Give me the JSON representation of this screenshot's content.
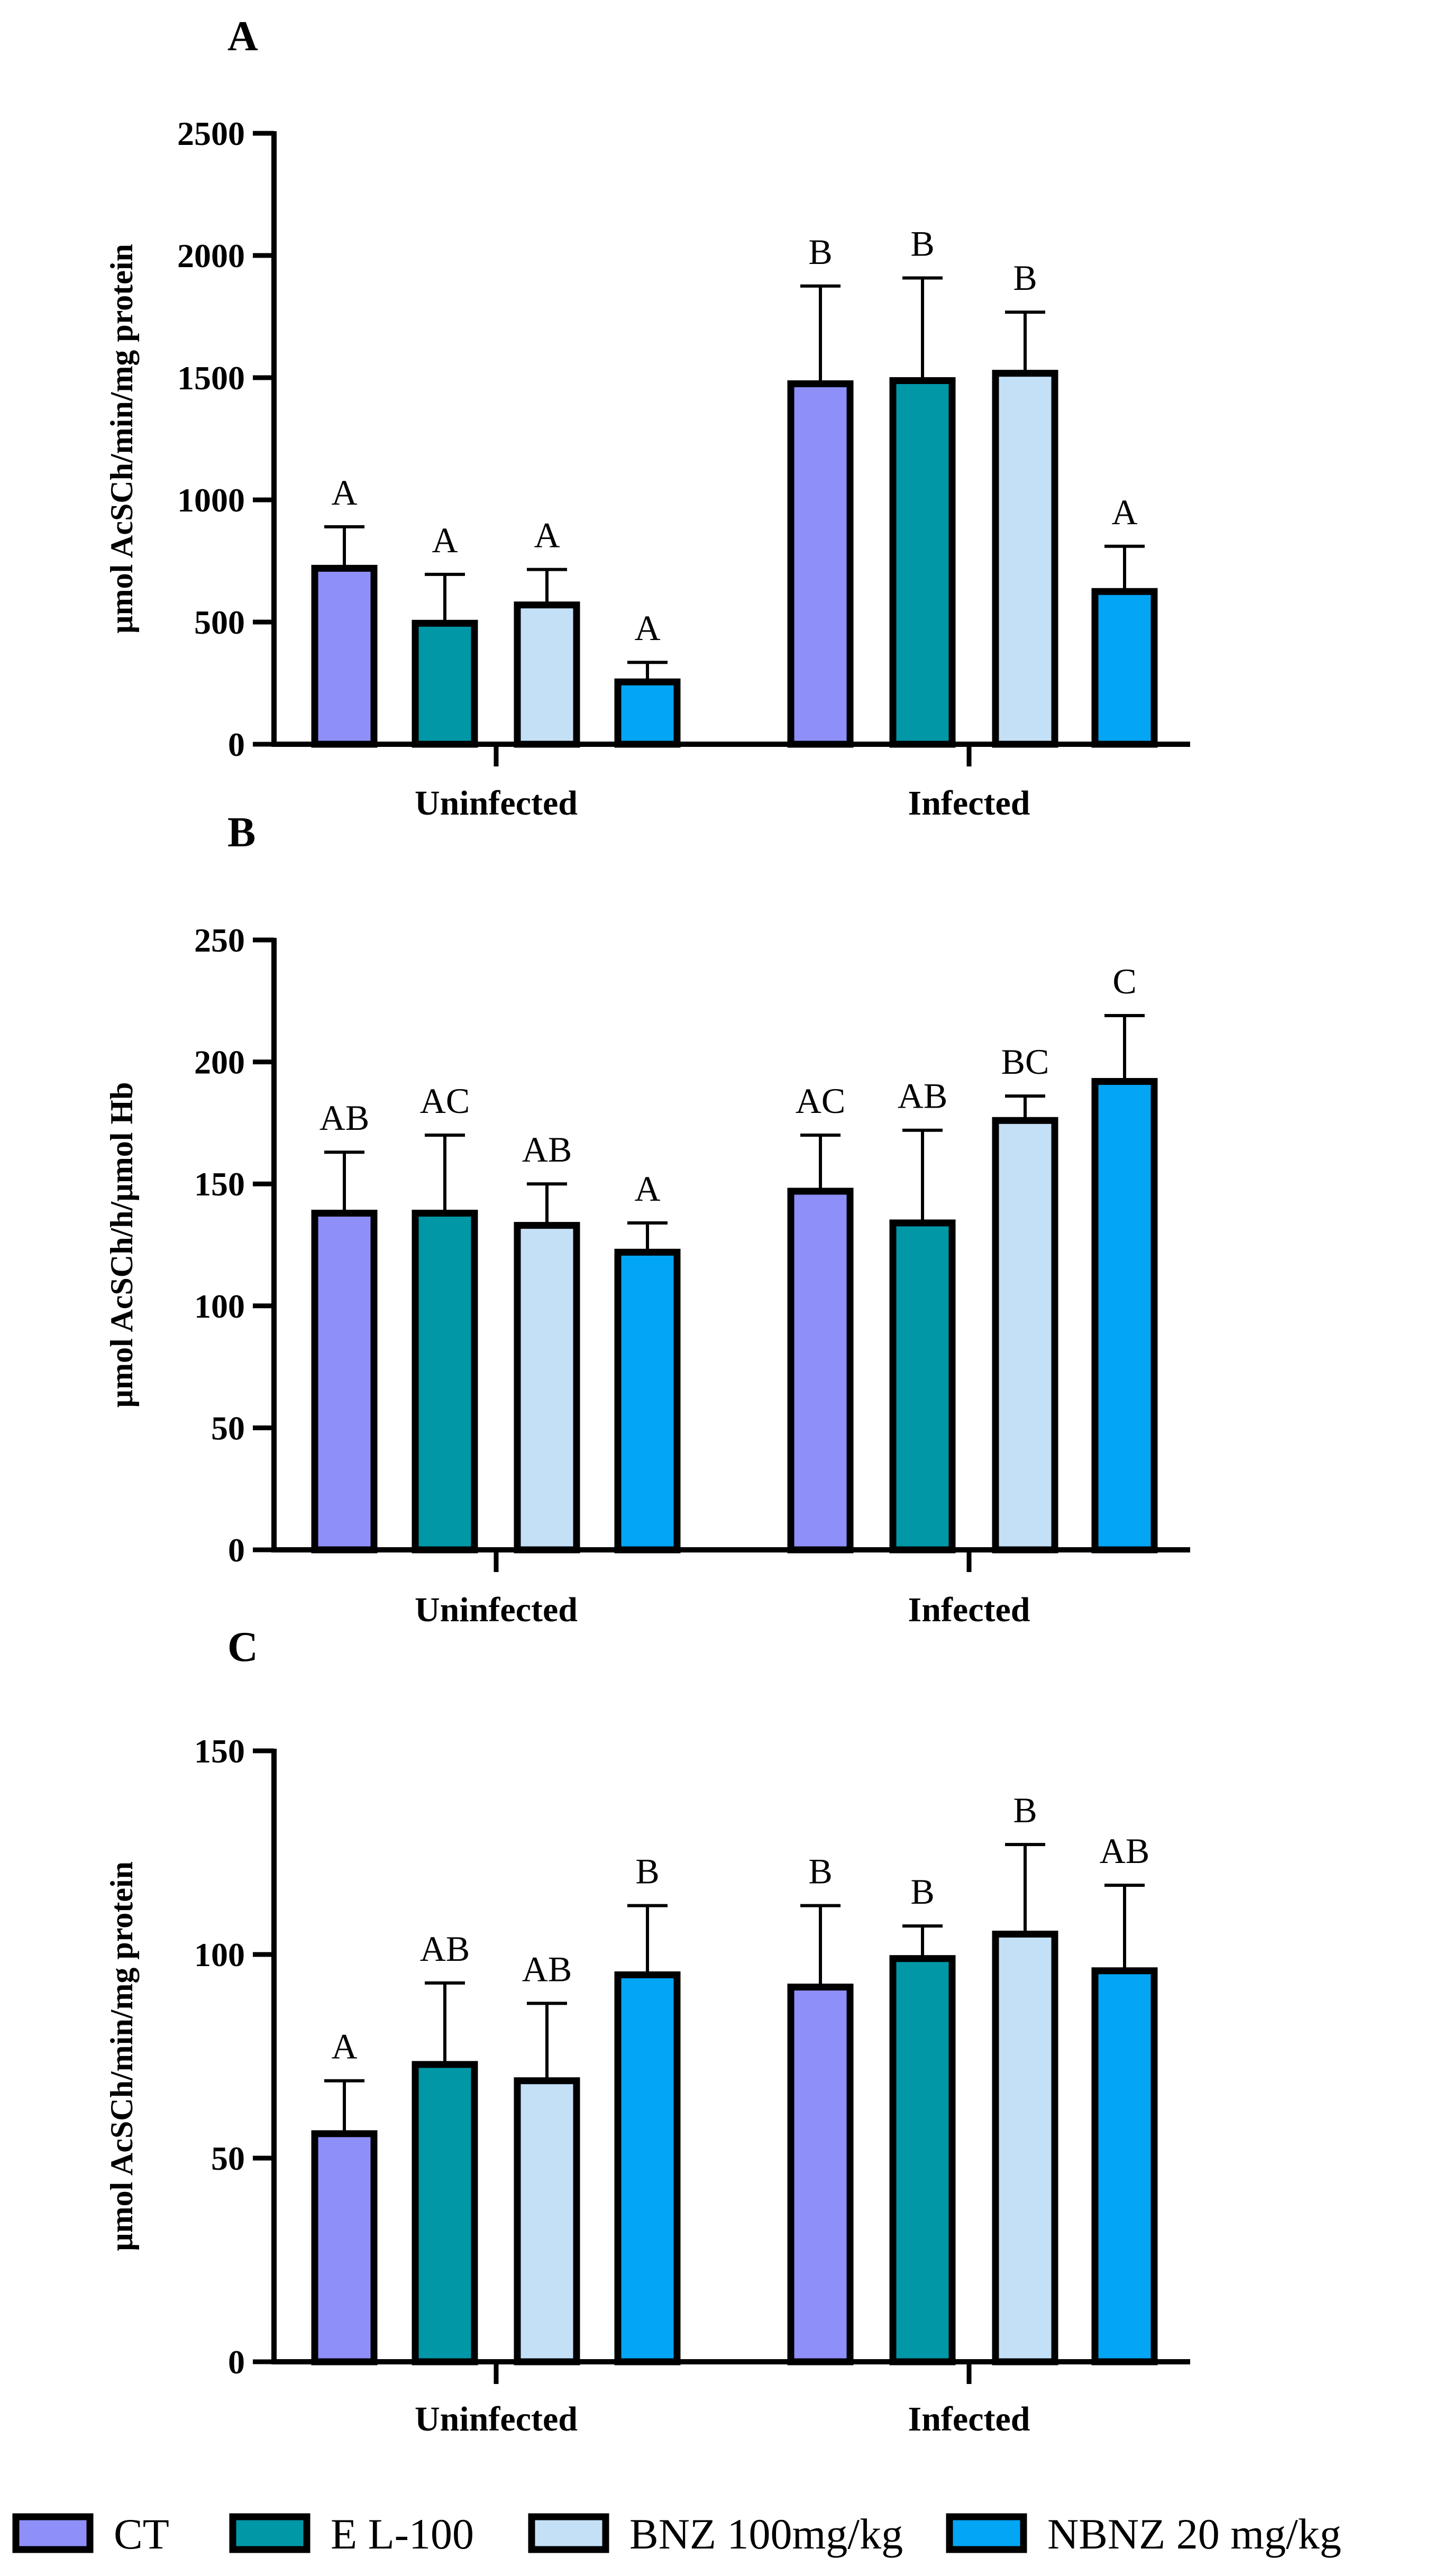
{
  "legend": {
    "items": [
      {
        "label": "CT",
        "color": "#8f8ffa"
      },
      {
        "label": "E L-100",
        "color": "#0097a7"
      },
      {
        "label": "BNZ 100mg/kg",
        "color": "#c4e0f7"
      },
      {
        "label": "NBNZ 20 mg/kg",
        "color": "#03a5f5"
      }
    ]
  },
  "chart_data": [
    {
      "type": "bar",
      "title": "A",
      "ylabel": "µmol AcSCh/min/mg protein",
      "xlabel": "",
      "ylim": [
        0,
        2500
      ],
      "yticks": [
        0,
        500,
        1000,
        1500,
        2000,
        2500
      ],
      "categories": [
        "Uninfected",
        "Infected"
      ],
      "series": [
        {
          "name": "CT",
          "values": [
            720,
            1475
          ],
          "errors": [
            170,
            400
          ],
          "letters": [
            "A",
            "B"
          ]
        },
        {
          "name": "E L-100",
          "values": [
            495,
            1488
          ],
          "errors": [
            200,
            420
          ],
          "letters": [
            "A",
            "B"
          ]
        },
        {
          "name": "BNZ 100mg/kg",
          "values": [
            570,
            1518
          ],
          "errors": [
            145,
            250
          ],
          "letters": [
            "A",
            "B"
          ]
        },
        {
          "name": "NBNZ 20 mg/kg",
          "values": [
            255,
            625
          ],
          "errors": [
            80,
            185
          ],
          "letters": [
            "A",
            "A"
          ]
        }
      ]
    },
    {
      "type": "bar",
      "title": "B",
      "ylabel": "µmol AcSCh/h/µmol Hb",
      "xlabel": "",
      "ylim": [
        0,
        250
      ],
      "yticks": [
        0,
        50,
        100,
        150,
        200,
        250
      ],
      "categories": [
        "Uninfected",
        "Infected"
      ],
      "series": [
        {
          "name": "CT",
          "values": [
            138,
            147
          ],
          "errors": [
            25,
            23
          ],
          "letters": [
            "AB",
            "AC"
          ]
        },
        {
          "name": "E L-100",
          "values": [
            138,
            134
          ],
          "errors": [
            32,
            38
          ],
          "letters": [
            "AC",
            "AB"
          ]
        },
        {
          "name": "BNZ 100mg/kg",
          "values": [
            133,
            176
          ],
          "errors": [
            17,
            10
          ],
          "letters": [
            "AB",
            "BC"
          ]
        },
        {
          "name": "NBNZ 20 mg/kg",
          "values": [
            122,
            192
          ],
          "errors": [
            12,
            27
          ],
          "letters": [
            "A",
            "C"
          ]
        }
      ]
    },
    {
      "type": "bar",
      "title": "C",
      "ylabel": "µmol AcSCh/min/mg protein",
      "xlabel": "",
      "ylim": [
        0,
        150
      ],
      "yticks": [
        0,
        50,
        100,
        150
      ],
      "categories": [
        "Uninfected",
        "Infected"
      ],
      "series": [
        {
          "name": "CT",
          "values": [
            56,
            92
          ],
          "errors": [
            13,
            20
          ],
          "letters": [
            "A",
            "B"
          ]
        },
        {
          "name": "E L-100",
          "values": [
            73,
            99
          ],
          "errors": [
            20,
            8
          ],
          "letters": [
            "AB",
            "B"
          ]
        },
        {
          "name": "BNZ 100mg/kg",
          "values": [
            69,
            105
          ],
          "errors": [
            19,
            22
          ],
          "letters": [
            "AB",
            "B"
          ]
        },
        {
          "name": "NBNZ 20 mg/kg",
          "values": [
            95,
            96
          ],
          "errors": [
            17,
            21
          ],
          "letters": [
            "B",
            "AB"
          ]
        }
      ]
    }
  ]
}
